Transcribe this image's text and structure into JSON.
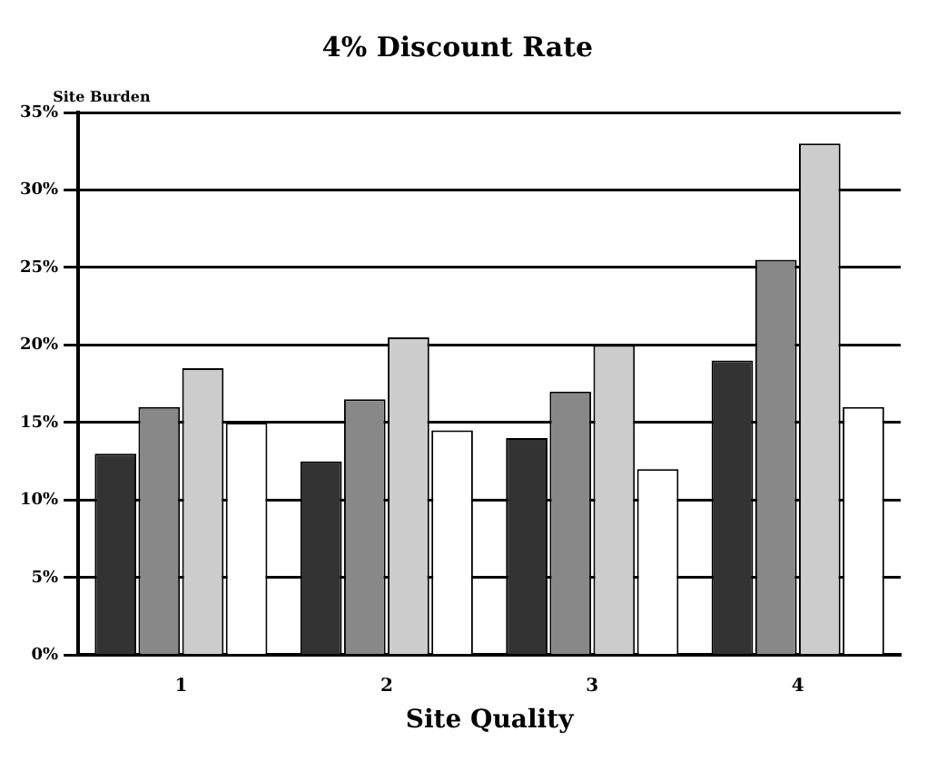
{
  "chart_data": {
    "type": "bar",
    "title": "4% Discount Rate",
    "xlabel": "Site Quality",
    "ylabel": "Site Burden",
    "categories": [
      "1",
      "2",
      "3",
      "4"
    ],
    "series": [
      {
        "color": "#333333",
        "values": [
          13,
          12.5,
          14,
          19
        ]
      },
      {
        "color": "#888888",
        "values": [
          16,
          16.5,
          17,
          25.5
        ]
      },
      {
        "color": "#cccccc",
        "values": [
          18.5,
          20.5,
          20,
          33
        ]
      },
      {
        "color": "#ffffff",
        "values": [
          15,
          14.5,
          12,
          16
        ]
      }
    ],
    "ylim": [
      0,
      35
    ],
    "yticks": [
      {
        "value": 0,
        "label": "0%"
      },
      {
        "value": 5,
        "label": "5%"
      },
      {
        "value": 10,
        "label": "10%"
      },
      {
        "value": 15,
        "label": "15%"
      },
      {
        "value": 20,
        "label": "20%"
      },
      {
        "value": 25,
        "label": "25%"
      },
      {
        "value": 30,
        "label": "30%"
      },
      {
        "value": 35,
        "label": "35%"
      }
    ],
    "grid": "y",
    "legend": false
  }
}
